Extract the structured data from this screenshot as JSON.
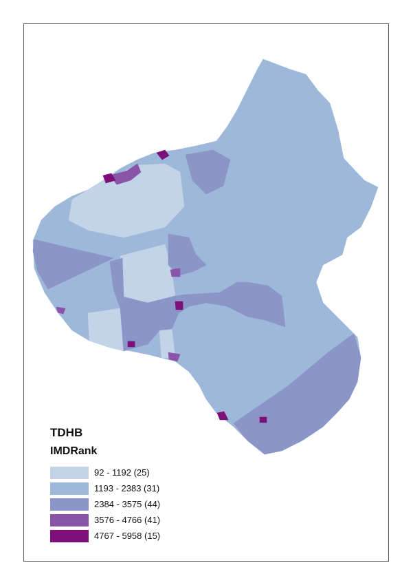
{
  "legend": {
    "title": "TDHB",
    "subtitle": "IMDRank",
    "items": [
      {
        "label": "92 - 1192 (25)",
        "color": "#c3d3e8"
      },
      {
        "label": "1193 - 2383 (31)",
        "color": "#9db8d8"
      },
      {
        "label": "2384 - 3575 (44)",
        "color": "#8b95c8"
      },
      {
        "label": "3576 - 4766 (41)",
        "color": "#8a55a8"
      },
      {
        "label": "4767 - 5958 (15)",
        "color": "#7d0f7a"
      }
    ]
  }
}
